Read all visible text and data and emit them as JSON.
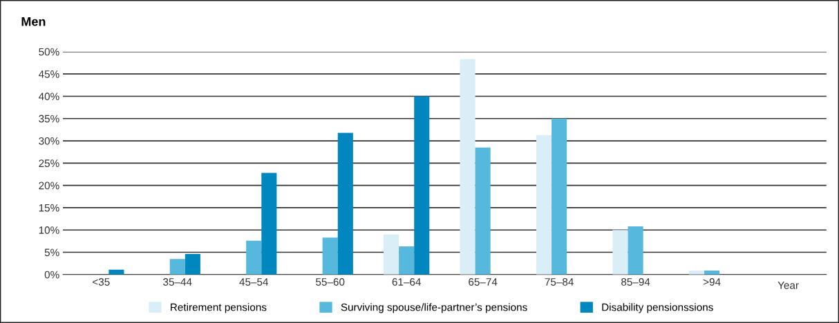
{
  "chart_data": {
    "type": "bar",
    "title": "Men",
    "xlabel": "Year",
    "categories": [
      "<35",
      "35–44",
      "45–54",
      "55–60",
      "61–64",
      "65–74",
      "75–84",
      "85–94",
      ">94",
      null
    ],
    "series": [
      {
        "name": "Retirement pensions",
        "color": "#d9eef6",
        "values": [
          0,
          0,
          0,
          0,
          9,
          48.3,
          31.3,
          10,
          0.9,
          null
        ]
      },
      {
        "name": "Surviving spouse/life-partner’s pensions",
        "color": "#55b8dc",
        "values": [
          0,
          3.5,
          7.6,
          8.3,
          6.3,
          28.5,
          35,
          10.8,
          0.9,
          null
        ]
      },
      {
        "name": "Disability pensionssions",
        "color": "#0087bf",
        "values": [
          1.1,
          4.6,
          22.8,
          31.8,
          40,
          0,
          0,
          0,
          0,
          null
        ]
      }
    ],
    "ylim": [
      0,
      50
    ],
    "yticks": [
      {
        "value": 0,
        "label": "0%"
      },
      {
        "value": 5,
        "label": "5%"
      },
      {
        "value": 10,
        "label": "10%"
      },
      {
        "value": 15,
        "label": "15%"
      },
      {
        "value": 20,
        "label": "20%"
      },
      {
        "value": 25,
        "label": "25%"
      },
      {
        "value": 30,
        "label": "30%"
      },
      {
        "value": 35,
        "label": "35%"
      },
      {
        "value": 40,
        "label": "40%"
      },
      {
        "value": 45,
        "label": "45%"
      },
      {
        "value": 50,
        "label": "50%"
      }
    ],
    "grid": "y",
    "legend": "bottom"
  }
}
